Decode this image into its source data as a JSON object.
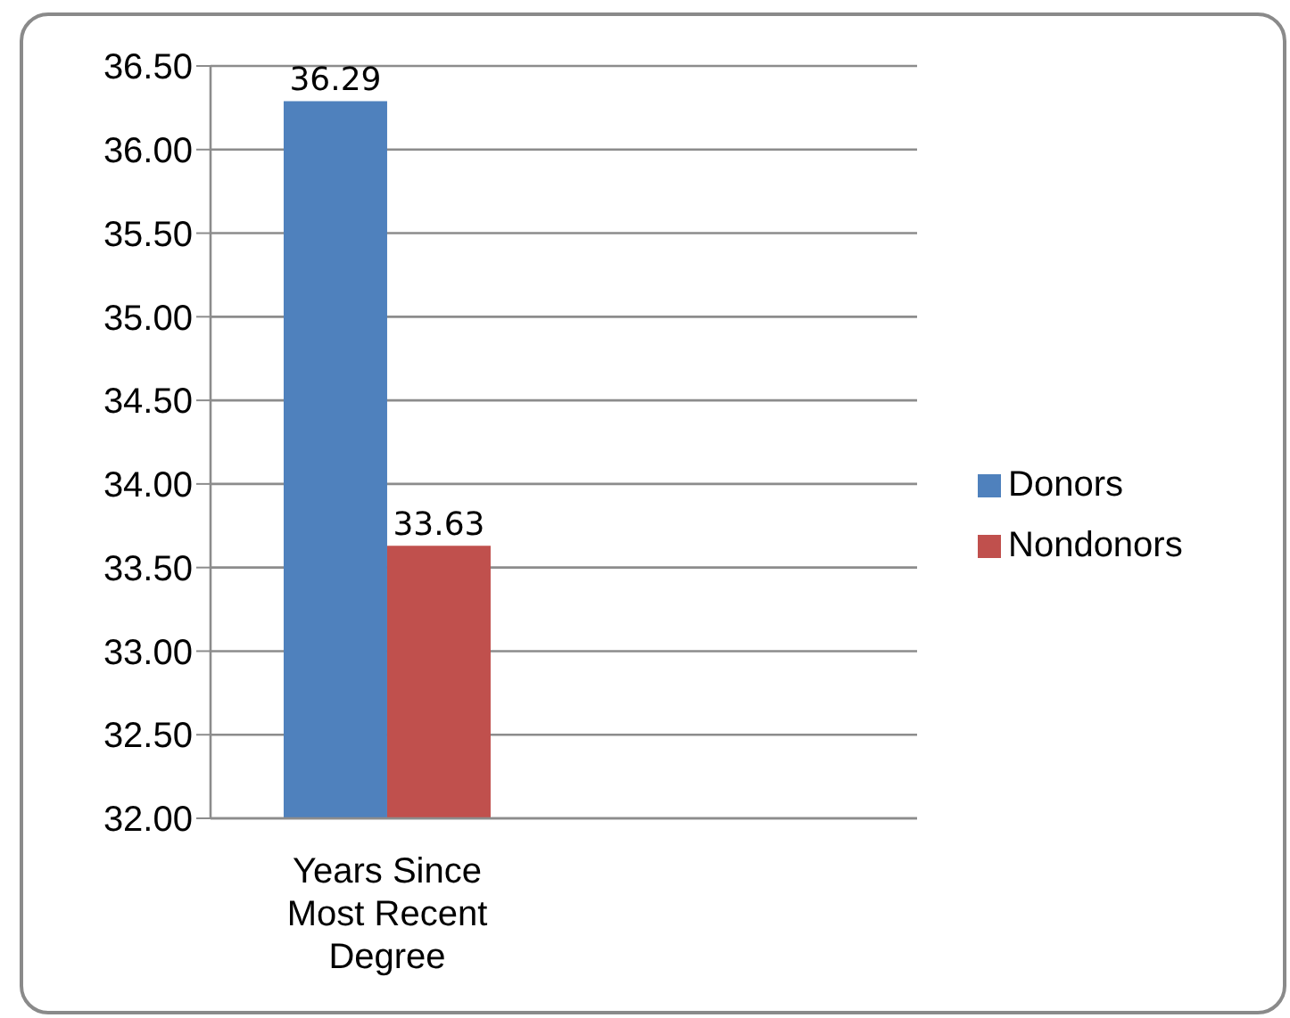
{
  "chart_data": {
    "type": "bar",
    "categories": [
      "Years Since Most Recent Degree",
      null
    ],
    "series": [
      {
        "name": "Donors",
        "color": "#4f81bd",
        "values": [
          36.29,
          null
        ]
      },
      {
        "name": "Nondonors",
        "color": "#c0504d",
        "values": [
          33.63,
          null
        ]
      }
    ],
    "ylim": [
      32,
      36.5
    ],
    "yticks": [
      {
        "value": 32,
        "label": "32.00"
      },
      {
        "value": 32.5,
        "label": "32.50"
      },
      {
        "value": 33,
        "label": "33.00"
      },
      {
        "value": 33.5,
        "label": "33.50"
      },
      {
        "value": 34,
        "label": "34.00"
      },
      {
        "value": 34.5,
        "label": "34.50"
      },
      {
        "value": 35,
        "label": "35.00"
      },
      {
        "value": 35.5,
        "label": "35.50"
      },
      {
        "value": 36,
        "label": "36.00"
      },
      {
        "value": 36.5,
        "label": "36.50"
      }
    ],
    "grid": "y",
    "legend": "right",
    "data_labels": true
  }
}
